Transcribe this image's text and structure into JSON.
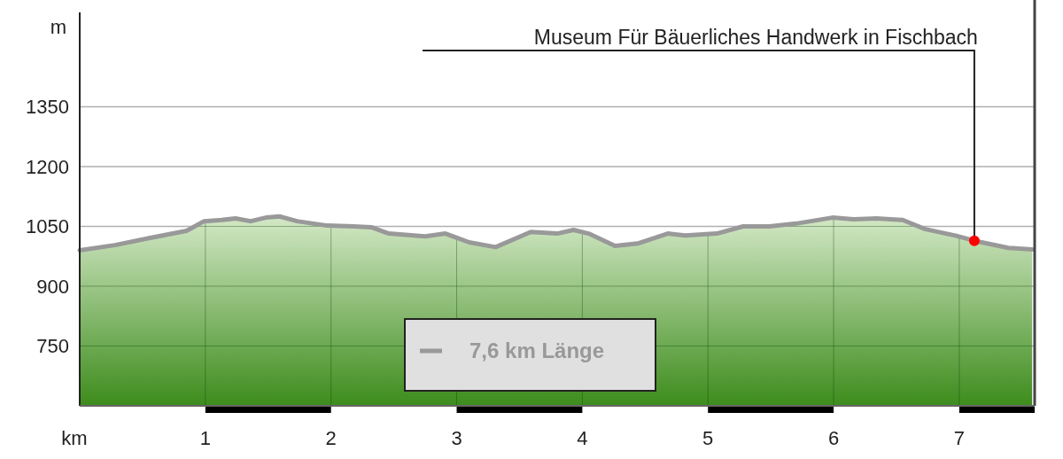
{
  "chart_data": {
    "type": "area",
    "xlabel": "km",
    "ylabel": "m",
    "xlim": [
      0,
      7.6
    ],
    "xticks": [
      1,
      2,
      3,
      4,
      5,
      6,
      7
    ],
    "ylim": [
      600,
      1600
    ],
    "yticks": [
      750,
      900,
      1050,
      1200,
      1350
    ],
    "grid": true,
    "legend": "bottom",
    "annotations": [
      {
        "text": "Museum Für Bäuerliches Handwerk in Fischbach",
        "x": 7.12,
        "y": 1014
      }
    ],
    "series": [
      {
        "name": "7,6 km Länge",
        "color": "#999999",
        "x": [
          0,
          0.28,
          0.56,
          0.85,
          0.99,
          1.13,
          1.24,
          1.36,
          1.48,
          1.59,
          1.73,
          1.97,
          2.18,
          2.32,
          2.46,
          2.75,
          2.91,
          3.1,
          3.31,
          3.59,
          3.8,
          3.93,
          4.05,
          4.26,
          4.44,
          4.68,
          4.82,
          5.07,
          5.28,
          5.49,
          5.7,
          5.99,
          6.16,
          6.34,
          6.55,
          6.73,
          6.97,
          7.12,
          7.39,
          7.58
        ],
        "values": [
          990,
          1003,
          1021,
          1039,
          1063,
          1066,
          1070,
          1063,
          1072,
          1075,
          1063,
          1052,
          1050,
          1048,
          1032,
          1025,
          1032,
          1010,
          998,
          1036,
          1032,
          1041,
          1032,
          1001,
          1007,
          1032,
          1027,
          1032,
          1050,
          1050,
          1057,
          1072,
          1068,
          1070,
          1066,
          1043,
          1027,
          1014,
          996,
          992
        ]
      }
    ]
  }
}
